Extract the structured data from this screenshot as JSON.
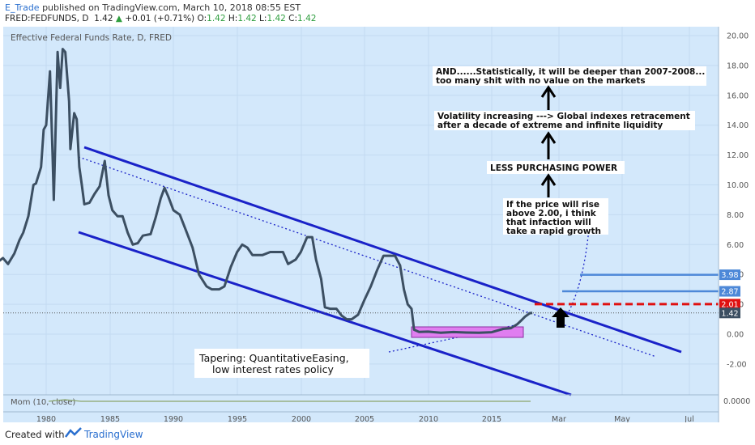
{
  "header": {
    "author": "E_Trade",
    "published": "published on TradingView.com, March 10, 2018 08:55 EST",
    "symbol": "FRED:FEDFUNDS, D",
    "last": "1.42",
    "change": "+0.01 (+0.71%)",
    "o_label": "O:",
    "o": "1.42",
    "h_label": "H:",
    "h": "1.42",
    "l_label": "L:",
    "l": "1.42",
    "c_label": "C:",
    "c": "1.42"
  },
  "footer": {
    "created": "Created with",
    "brand": "TradingView"
  },
  "colors": {
    "background": "#d3e8fb",
    "price_line": "#3c4f62",
    "channel": "#1a22c8",
    "annotation_bg": "#ffffff",
    "rectangle": "#e07ef0",
    "red_level": "#e01010",
    "level_blue": "#4d88d8",
    "momentum": "#8aa56a"
  },
  "chart_data": {
    "type": "line",
    "title": "Effective Federal Funds Rate, D, FRED",
    "indicator_label": "Mom (10, close)",
    "x_axis_labels": [
      "1980",
      "1985",
      "1990",
      "1995",
      "2000",
      "2005",
      "2010",
      "2015",
      "Mar",
      "May",
      "Jul"
    ],
    "y_ticks": [
      "20.00",
      "18.00",
      "16.00",
      "14.00",
      "12.00",
      "10.00",
      "8.00",
      "6.00",
      "4.00",
      "2.00",
      "0.00",
      "-2.00"
    ],
    "indicator_tick": "0.0000",
    "ylim": [
      -4.0,
      20.5
    ],
    "price_labels": [
      {
        "value": 3.98,
        "label": "3.98",
        "color": "#4d88d8"
      },
      {
        "value": 2.87,
        "label": "2.87",
        "color": "#4d88d8"
      },
      {
        "value": 2.01,
        "label": "2.01",
        "color": "#e01010"
      },
      {
        "value": 1.42,
        "label": "1.42",
        "color": "#3c4f62"
      }
    ],
    "series": [
      {
        "values": [
          [
            1976.0,
            5.0
          ],
          [
            1976.3,
            4.9
          ],
          [
            1976.6,
            5.1
          ],
          [
            1977.0,
            4.7
          ],
          [
            1977.5,
            5.4
          ],
          [
            1977.9,
            6.3
          ],
          [
            1978.2,
            6.8
          ],
          [
            1978.6,
            7.9
          ],
          [
            1979.0,
            10.0
          ],
          [
            1979.2,
            10.1
          ],
          [
            1979.6,
            11.2
          ],
          [
            1979.8,
            13.7
          ],
          [
            1980.0,
            14.0
          ],
          [
            1980.3,
            17.6
          ],
          [
            1980.5,
            12.0
          ],
          [
            1980.6,
            9.0
          ],
          [
            1980.9,
            18.9
          ],
          [
            1981.1,
            16.5
          ],
          [
            1981.3,
            19.1
          ],
          [
            1981.5,
            18.9
          ],
          [
            1981.8,
            15.6
          ],
          [
            1981.9,
            12.4
          ],
          [
            1982.2,
            14.8
          ],
          [
            1982.4,
            14.4
          ],
          [
            1982.6,
            11.2
          ],
          [
            1982.8,
            10.0
          ],
          [
            1983.0,
            8.7
          ],
          [
            1983.4,
            8.8
          ],
          [
            1983.8,
            9.4
          ],
          [
            1984.2,
            9.9
          ],
          [
            1984.6,
            11.6
          ],
          [
            1984.9,
            9.3
          ],
          [
            1985.2,
            8.3
          ],
          [
            1985.6,
            7.9
          ],
          [
            1986.0,
            7.9
          ],
          [
            1986.4,
            6.8
          ],
          [
            1986.8,
            6.0
          ],
          [
            1987.2,
            6.1
          ],
          [
            1987.6,
            6.6
          ],
          [
            1988.2,
            6.7
          ],
          [
            1988.6,
            7.8
          ],
          [
            1989.0,
            9.1
          ],
          [
            1989.3,
            9.8
          ],
          [
            1989.6,
            9.2
          ],
          [
            1990.0,
            8.3
          ],
          [
            1990.5,
            8.0
          ],
          [
            1991.0,
            6.9
          ],
          [
            1991.5,
            5.8
          ],
          [
            1992.0,
            4.0
          ],
          [
            1992.6,
            3.2
          ],
          [
            1993.0,
            3.0
          ],
          [
            1993.6,
            3.0
          ],
          [
            1994.0,
            3.2
          ],
          [
            1994.5,
            4.5
          ],
          [
            1995.0,
            5.5
          ],
          [
            1995.4,
            6.0
          ],
          [
            1995.8,
            5.8
          ],
          [
            1996.2,
            5.3
          ],
          [
            1996.6,
            5.3
          ],
          [
            1997.0,
            5.3
          ],
          [
            1997.6,
            5.5
          ],
          [
            1998.2,
            5.5
          ],
          [
            1998.6,
            5.5
          ],
          [
            1999.0,
            4.7
          ],
          [
            1999.6,
            5.0
          ],
          [
            2000.0,
            5.5
          ],
          [
            2000.5,
            6.5
          ],
          [
            2000.9,
            6.5
          ],
          [
            2001.2,
            5.0
          ],
          [
            2001.6,
            3.7
          ],
          [
            2001.9,
            1.8
          ],
          [
            2002.3,
            1.7
          ],
          [
            2002.8,
            1.7
          ],
          [
            2003.2,
            1.25
          ],
          [
            2003.6,
            1.0
          ],
          [
            2004.0,
            1.0
          ],
          [
            2004.5,
            1.3
          ],
          [
            2005.0,
            2.3
          ],
          [
            2005.5,
            3.2
          ],
          [
            2006.0,
            4.3
          ],
          [
            2006.5,
            5.25
          ],
          [
            2007.0,
            5.25
          ],
          [
            2007.4,
            5.25
          ],
          [
            2007.8,
            4.6
          ],
          [
            2008.1,
            3.0
          ],
          [
            2008.4,
            2.0
          ],
          [
            2008.7,
            1.7
          ],
          [
            2008.9,
            0.3
          ],
          [
            2009.3,
            0.15
          ],
          [
            2010.0,
            0.17
          ],
          [
            2011.0,
            0.1
          ],
          [
            2012.0,
            0.14
          ],
          [
            2013.0,
            0.11
          ],
          [
            2014.0,
            0.09
          ],
          [
            2015.0,
            0.13
          ],
          [
            2015.9,
            0.35
          ],
          [
            2016.5,
            0.4
          ],
          [
            2017.0,
            0.66
          ],
          [
            2017.3,
            0.9
          ],
          [
            2017.6,
            1.16
          ],
          [
            2018.0,
            1.41
          ],
          [
            2018.19,
            1.42
          ]
        ]
      }
    ],
    "annotations": [
      {
        "text": "AND......Statistically, it will be deeper than 2007-2008...",
        "text2": "too many shit with no value on the markets"
      },
      {
        "text": "Volatility increasing ---> Global indexes retracement",
        "text2": "after a decade of extreme and infinite liquidity"
      },
      {
        "text": "LESS PURCHASING POWER"
      },
      {
        "text": "If the price will rise",
        "text2": "above 2.00, i think",
        "text3": "that infaction will",
        "text4": "take a rapid growth"
      },
      {
        "text": "Tapering: QuantitativeEasing,",
        "text2": "low interest rates policy"
      }
    ]
  }
}
